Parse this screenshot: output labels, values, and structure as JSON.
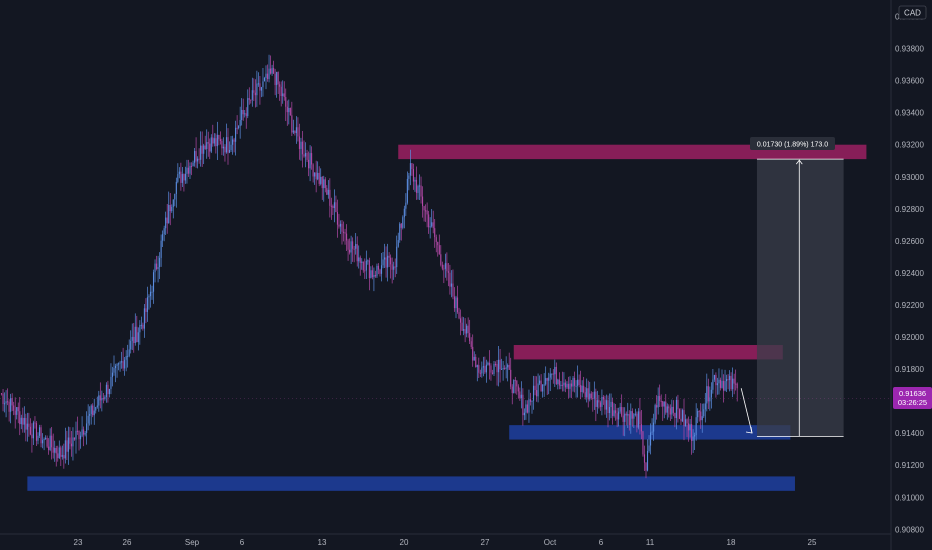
{
  "symbol_currency": "CAD",
  "price_label": {
    "value": "0.91636",
    "countdown": "03:26:25"
  },
  "measure_label": "0.01730 (1.89%) 173.0",
  "colors": {
    "background": "#131722",
    "up": "#5b8de0",
    "down": "#b44aa8",
    "axis_text": "#b2b5be",
    "resistance_zone": "#9c2062",
    "support_zone": "#1e3fa0",
    "measure_box": "#3a3e4a",
    "price_label_bg": "#9c27b0"
  },
  "chart_data": {
    "type": "candlestick",
    "title": "",
    "xlabel": "",
    "ylabel": "",
    "ylim": [
      0.909,
      0.9395
    ],
    "grid": false,
    "yticks": [
      "0.90800",
      "0.91000",
      "0.91200",
      "0.91400",
      "0.91600",
      "0.91800",
      "0.92000",
      "0.92200",
      "0.92400",
      "0.92600",
      "0.92800",
      "0.93000",
      "0.93200",
      "0.93400",
      "0.93600",
      "0.93800",
      "0.94000"
    ],
    "xticks": [
      "23",
      "26",
      "Sep",
      "6",
      "13",
      "20",
      "27",
      "Oct",
      "6",
      "11",
      "18",
      "25"
    ],
    "anchors": [
      {
        "bar": 0,
        "close": 0.9165
      },
      {
        "bar": 20,
        "close": 0.9143
      },
      {
        "bar": 40,
        "close": 0.9127
      },
      {
        "bar": 55,
        "close": 0.9144
      },
      {
        "bar": 75,
        "close": 0.9175
      },
      {
        "bar": 95,
        "close": 0.9212
      },
      {
        "bar": 115,
        "close": 0.9295
      },
      {
        "bar": 135,
        "close": 0.9322
      },
      {
        "bar": 150,
        "close": 0.932
      },
      {
        "bar": 165,
        "close": 0.9348
      },
      {
        "bar": 180,
        "close": 0.9365
      },
      {
        "bar": 195,
        "close": 0.9325
      },
      {
        "bar": 215,
        "close": 0.929
      },
      {
        "bar": 230,
        "close": 0.9258
      },
      {
        "bar": 245,
        "close": 0.924
      },
      {
        "bar": 260,
        "close": 0.9248
      },
      {
        "bar": 270,
        "close": 0.9305
      },
      {
        "bar": 285,
        "close": 0.9265
      },
      {
        "bar": 300,
        "close": 0.922
      },
      {
        "bar": 315,
        "close": 0.918
      },
      {
        "bar": 330,
        "close": 0.9185
      },
      {
        "bar": 345,
        "close": 0.9155
      },
      {
        "bar": 360,
        "close": 0.9178
      },
      {
        "bar": 375,
        "close": 0.9172
      },
      {
        "bar": 390,
        "close": 0.9162
      },
      {
        "bar": 405,
        "close": 0.9155
      },
      {
        "bar": 420,
        "close": 0.9148
      },
      {
        "bar": 425,
        "close": 0.9118
      },
      {
        "bar": 432,
        "close": 0.916
      },
      {
        "bar": 445,
        "close": 0.9155
      },
      {
        "bar": 455,
        "close": 0.914
      },
      {
        "bar": 470,
        "close": 0.9175
      },
      {
        "bar": 485,
        "close": 0.9168
      }
    ],
    "zones": [
      {
        "name": "resistance-top",
        "x_from_bar": 262,
        "x_to_bar": 570,
        "y_low": 0.9311,
        "y_high": 0.932,
        "color": "#9c2062"
      },
      {
        "name": "resistance-mid",
        "x_from_bar": 338,
        "x_to_bar": 515,
        "y_low": 0.9186,
        "y_high": 0.9195,
        "color": "#9c2062"
      },
      {
        "name": "support-mid",
        "x_from_bar": 335,
        "x_to_bar": 520,
        "y_low": 0.9136,
        "y_high": 0.9145,
        "color": "#1e3fa0"
      },
      {
        "name": "support-low",
        "x_from_bar": 18,
        "x_to_bar": 523,
        "y_low": 0.9104,
        "y_high": 0.9113,
        "color": "#1e3fa0"
      }
    ],
    "measure": {
      "x_from_bar": 498,
      "x_to_bar": 555,
      "y_low": 0.9138,
      "y_high": 0.9311,
      "value_change": 0.0173,
      "pct_change": 1.89,
      "points": 173.0
    }
  }
}
